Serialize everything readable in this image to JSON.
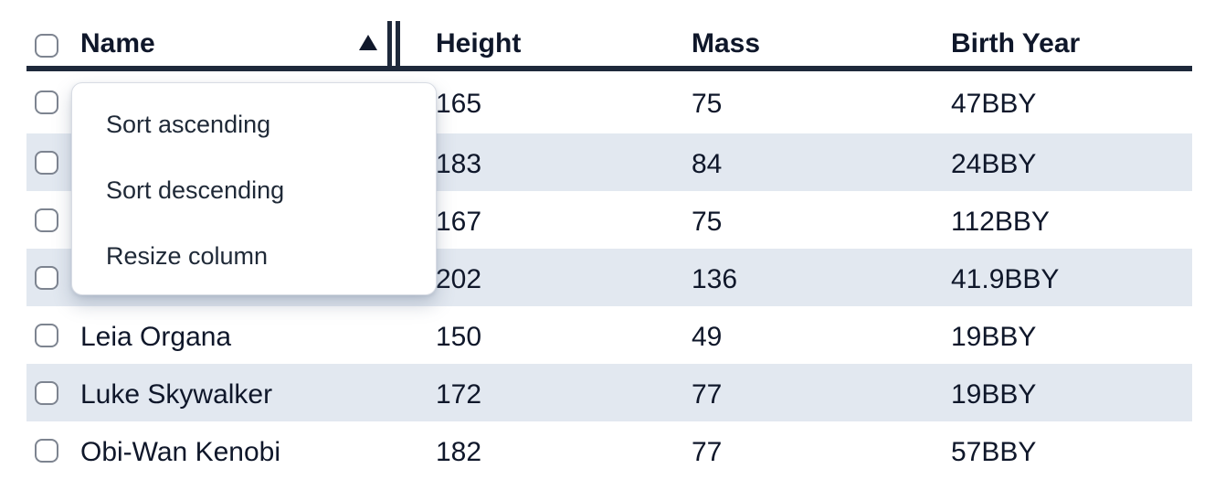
{
  "sort": {
    "column": "Name",
    "direction": "ascending"
  },
  "header": {
    "select_all_checked": false,
    "columns": [
      {
        "label": "Name"
      },
      {
        "label": "Height"
      },
      {
        "label": "Mass"
      },
      {
        "label": "Birth Year"
      }
    ]
  },
  "menu": {
    "items": [
      {
        "label": "Sort ascending"
      },
      {
        "label": "Sort descending"
      },
      {
        "label": "Resize column"
      }
    ]
  },
  "rows": [
    {
      "checked": false,
      "name": "",
      "height": "165",
      "mass": "75",
      "birth_year": "47BBY"
    },
    {
      "checked": false,
      "name": "",
      "height": "183",
      "mass": "84",
      "birth_year": "24BBY"
    },
    {
      "checked": false,
      "name": "",
      "height": "167",
      "mass": "75",
      "birth_year": "112BBY"
    },
    {
      "checked": false,
      "name": "",
      "height": "202",
      "mass": "136",
      "birth_year": "41.9BBY"
    },
    {
      "checked": false,
      "name": "Leia Organa",
      "height": "150",
      "mass": "49",
      "birth_year": "19BBY"
    },
    {
      "checked": false,
      "name": "Luke Skywalker",
      "height": "172",
      "mass": "77",
      "birth_year": "19BBY"
    },
    {
      "checked": false,
      "name": "Obi-Wan Kenobi",
      "height": "182",
      "mass": "77",
      "birth_year": "57BBY"
    }
  ],
  "colors": {
    "row_stripe": "#e2e8f0",
    "header_border": "#1e293b",
    "text": "#0f172a",
    "checkbox_border": "#7d8490",
    "menu_border": "#d8dce4"
  }
}
